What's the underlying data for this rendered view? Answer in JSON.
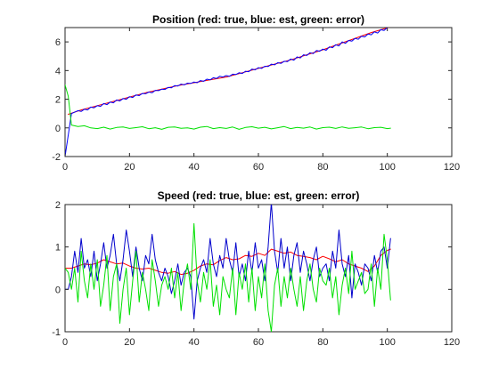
{
  "chart_data": [
    {
      "type": "line",
      "title": "Position (red: true, blue: est, green: error)",
      "xlabel": "",
      "ylabel": "",
      "xlim": [
        0,
        120
      ],
      "ylim": [
        -2,
        7
      ],
      "xticks": [
        0,
        20,
        40,
        60,
        80,
        100,
        120
      ],
      "yticks": [
        -2,
        0,
        2,
        4,
        6
      ],
      "xtick_labels": [
        "0",
        "20",
        "40",
        "60",
        "80",
        "100",
        "120"
      ],
      "ytick_labels": [
        "-2",
        "0",
        "2",
        "4",
        "6"
      ],
      "grid": false,
      "series": [
        {
          "color": "#ff0000",
          "x": [
            1,
            5,
            10,
            15,
            20,
            25,
            30,
            35,
            40,
            45,
            50,
            55,
            60,
            65,
            70,
            75,
            80,
            85,
            90,
            95,
            101
          ],
          "y": [
            0.95,
            1.25,
            1.55,
            1.85,
            2.15,
            2.45,
            2.7,
            2.95,
            3.15,
            3.35,
            3.55,
            3.85,
            4.15,
            4.45,
            4.75,
            5.1,
            5.45,
            5.85,
            6.25,
            6.65,
            7.05
          ]
        },
        {
          "color": "#0000ff",
          "x": [
            0,
            2,
            3,
            4,
            5,
            6,
            7,
            8,
            9,
            10,
            11,
            12,
            13,
            14,
            15,
            16,
            17,
            18,
            19,
            20,
            21,
            22,
            23,
            24,
            25,
            26,
            27,
            28,
            29,
            30,
            31,
            32,
            33,
            34,
            35,
            36,
            37,
            38,
            39,
            40,
            41,
            42,
            43,
            44,
            45,
            46,
            47,
            48,
            49,
            50,
            51,
            52,
            53,
            54,
            55,
            56,
            57,
            58,
            59,
            60,
            61,
            62,
            63,
            64,
            65,
            66,
            67,
            68,
            69,
            70,
            71,
            72,
            73,
            74,
            75,
            76,
            77,
            78,
            79,
            80,
            81,
            82,
            83,
            84,
            85,
            86,
            87,
            88,
            89,
            90,
            91,
            92,
            93,
            94,
            95,
            96,
            97,
            98,
            99,
            100,
            101
          ],
          "y": [
            -2.0,
            1.0,
            1.1,
            1.2,
            1.15,
            1.3,
            1.25,
            1.45,
            1.4,
            1.55,
            1.5,
            1.7,
            1.62,
            1.8,
            1.75,
            1.95,
            1.88,
            2.05,
            2.0,
            2.18,
            2.12,
            2.3,
            2.25,
            2.4,
            2.38,
            2.5,
            2.45,
            2.62,
            2.6,
            2.7,
            2.68,
            2.82,
            2.8,
            2.95,
            2.92,
            3.05,
            3.0,
            3.12,
            3.1,
            3.2,
            3.15,
            3.3,
            3.25,
            3.4,
            3.35,
            3.5,
            3.45,
            3.6,
            3.55,
            3.65,
            3.6,
            3.75,
            3.72,
            3.85,
            3.8,
            3.95,
            3.92,
            4.1,
            4.05,
            4.2,
            4.15,
            4.3,
            4.28,
            4.45,
            4.4,
            4.55,
            4.5,
            4.65,
            4.62,
            4.8,
            4.72,
            4.95,
            4.88,
            5.1,
            5.05,
            5.25,
            5.18,
            5.4,
            5.35,
            5.5,
            5.42,
            5.65,
            5.6,
            5.8,
            5.72,
            6.0,
            5.9,
            6.1,
            6.05,
            6.25,
            6.18,
            6.4,
            6.35,
            6.55,
            6.5,
            6.7,
            6.62,
            6.85,
            6.8,
            7.0,
            7.1
          ]
        },
        {
          "color": "#00e000",
          "x": [
            0,
            1,
            2,
            4,
            6,
            8,
            10,
            12,
            14,
            16,
            18,
            20,
            22,
            24,
            26,
            28,
            30,
            32,
            34,
            36,
            38,
            40,
            42,
            44,
            46,
            48,
            50,
            52,
            54,
            56,
            58,
            60,
            62,
            64,
            66,
            68,
            70,
            72,
            74,
            76,
            78,
            80,
            82,
            84,
            86,
            88,
            90,
            92,
            94,
            96,
            98,
            100,
            101
          ],
          "y": [
            3.0,
            2.2,
            0.2,
            0.1,
            0.15,
            0.0,
            -0.05,
            0.05,
            -0.08,
            0.03,
            0.06,
            -0.04,
            0.02,
            0.08,
            -0.06,
            0.01,
            -0.1,
            0.04,
            0.07,
            -0.03,
            0.0,
            -0.08,
            0.05,
            0.1,
            -0.05,
            0.02,
            -0.04,
            0.06,
            -0.1,
            0.03,
            0.08,
            -0.02,
            0.04,
            -0.07,
            0.01,
            0.09,
            -0.05,
            0.03,
            -0.02,
            0.06,
            -0.08,
            0.02,
            0.05,
            -0.04,
            0.07,
            -0.03,
            0.01,
            0.06,
            -0.06,
            0.02,
            0.04,
            -0.05,
            -0.02
          ]
        }
      ]
    },
    {
      "type": "line",
      "title": "Speed (red: true, blue: est, green: error)",
      "xlabel": "",
      "ylabel": "",
      "xlim": [
        0,
        120
      ],
      "ylim": [
        -1,
        2
      ],
      "xticks": [
        0,
        20,
        40,
        60,
        80,
        100,
        120
      ],
      "yticks": [
        -1,
        0,
        1,
        2
      ],
      "xtick_labels": [
        "0",
        "20",
        "40",
        "60",
        "80",
        "100",
        "120"
      ],
      "ytick_labels": [
        "-1",
        "0",
        "1",
        "2"
      ],
      "grid": false,
      "series": [
        {
          "color": "#ff0000",
          "x": [
            0,
            2,
            4,
            6,
            8,
            10,
            12,
            14,
            16,
            18,
            20,
            22,
            24,
            26,
            28,
            30,
            32,
            34,
            36,
            38,
            40,
            42,
            44,
            46,
            48,
            50,
            52,
            54,
            56,
            58,
            60,
            62,
            64,
            66,
            68,
            70,
            72,
            74,
            76,
            78,
            80,
            82,
            84,
            86,
            88,
            90,
            92,
            94,
            96,
            98,
            100,
            101
          ],
          "y": [
            0.5,
            0.5,
            0.55,
            0.6,
            0.58,
            0.62,
            0.7,
            0.65,
            0.6,
            0.62,
            0.55,
            0.5,
            0.48,
            0.5,
            0.45,
            0.4,
            0.38,
            0.42,
            0.35,
            0.38,
            0.45,
            0.55,
            0.6,
            0.58,
            0.68,
            0.75,
            0.7,
            0.72,
            0.8,
            0.78,
            0.85,
            0.8,
            0.95,
            0.9,
            0.85,
            0.88,
            0.8,
            0.78,
            0.75,
            0.7,
            0.78,
            0.72,
            0.65,
            0.7,
            0.6,
            0.55,
            0.5,
            0.42,
            0.55,
            0.8,
            0.92,
            0.95
          ]
        },
        {
          "color": "#0000cc",
          "x": [
            0,
            1,
            2,
            3,
            4,
            5,
            6,
            7,
            8,
            9,
            10,
            11,
            12,
            13,
            14,
            15,
            16,
            17,
            18,
            19,
            20,
            21,
            22,
            23,
            24,
            25,
            26,
            27,
            28,
            29,
            30,
            31,
            32,
            33,
            34,
            35,
            36,
            37,
            38,
            39,
            40,
            41,
            42,
            43,
            44,
            45,
            46,
            47,
            48,
            49,
            50,
            51,
            52,
            53,
            54,
            55,
            56,
            57,
            58,
            59,
            60,
            61,
            62,
            63,
            64,
            65,
            66,
            67,
            68,
            69,
            70,
            71,
            72,
            73,
            74,
            75,
            76,
            77,
            78,
            79,
            80,
            81,
            82,
            83,
            84,
            85,
            86,
            87,
            88,
            89,
            90,
            91,
            92,
            93,
            94,
            95,
            96,
            97,
            98,
            99,
            100,
            101
          ],
          "y": [
            0.0,
            0.0,
            0.3,
            0.9,
            0.4,
            1.2,
            0.5,
            0.7,
            0.3,
            0.9,
            0.2,
            0.6,
            1.1,
            0.5,
            0.8,
            1.3,
            0.6,
            0.2,
            0.7,
            1.4,
            0.9,
            0.3,
            1.0,
            0.5,
            0.2,
            0.8,
            0.6,
            1.3,
            0.7,
            0.4,
            0.2,
            0.5,
            0.3,
            -0.1,
            0.2,
            0.6,
            0.1,
            0.4,
            0.5,
            0.3,
            -0.7,
            0.2,
            0.5,
            0.7,
            0.4,
            1.2,
            0.6,
            0.3,
            0.8,
            0.5,
            1.2,
            0.7,
            0.4,
            1.1,
            0.3,
            0.6,
            0.2,
            0.9,
            0.4,
            1.1,
            0.5,
            0.7,
            0.2,
            1.0,
            2.05,
            0.9,
            0.4,
            1.2,
            0.5,
            1.0,
            0.2,
            0.8,
            1.1,
            0.4,
            0.9,
            0.6,
            0.2,
            0.7,
            1.0,
            0.3,
            0.5,
            0.6,
            0.2,
            0.9,
            0.5,
            1.4,
            0.6,
            0.3,
            0.8,
            -0.2,
            0.6,
            0.4,
            0.1,
            0.6,
            0.5,
            0.2,
            0.8,
            0.4,
            0.9,
            1.0,
            0.5,
            1.2
          ]
        },
        {
          "color": "#00e000",
          "x": [
            0,
            1,
            2,
            3,
            4,
            5,
            6,
            7,
            8,
            9,
            10,
            11,
            12,
            13,
            14,
            15,
            16,
            17,
            18,
            19,
            20,
            21,
            22,
            23,
            24,
            25,
            26,
            27,
            28,
            29,
            30,
            31,
            32,
            33,
            34,
            35,
            36,
            37,
            38,
            39,
            40,
            41,
            42,
            43,
            44,
            45,
            46,
            47,
            48,
            49,
            50,
            51,
            52,
            53,
            54,
            55,
            56,
            57,
            58,
            59,
            60,
            61,
            62,
            63,
            64,
            65,
            66,
            67,
            68,
            69,
            70,
            71,
            72,
            73,
            74,
            75,
            76,
            77,
            78,
            79,
            80,
            81,
            82,
            83,
            84,
            85,
            86,
            87,
            88,
            89,
            90,
            91,
            92,
            93,
            94,
            95,
            96,
            97,
            98,
            99,
            100,
            101
          ],
          "y": [
            0.5,
            0.4,
            0.0,
            0.5,
            -0.3,
            0.9,
            0.2,
            -0.2,
            0.6,
            0.0,
            0.7,
            -0.4,
            0.1,
            0.8,
            -0.5,
            0.3,
            0.6,
            -0.8,
            0.0,
            0.5,
            -0.6,
            0.2,
            0.9,
            -0.3,
            0.4,
            0.0,
            -0.5,
            0.7,
            0.2,
            -0.4,
            0.1,
            0.3,
            0.0,
            0.5,
            -0.2,
            0.4,
            -0.5,
            0.2,
            0.6,
            0.0,
            1.55,
            0.2,
            -0.3,
            0.4,
            0.0,
            0.7,
            -0.4,
            0.1,
            -0.6,
            0.3,
            0.0,
            -0.2,
            0.5,
            -0.6,
            0.4,
            0.0,
            0.6,
            -0.3,
            0.5,
            -0.5,
            0.3,
            -0.2,
            0.6,
            -0.5,
            -1.0,
            0.1,
            0.5,
            -0.4,
            0.3,
            -0.2,
            0.5,
            0.0,
            -0.4,
            0.3,
            -0.5,
            0.2,
            0.6,
            0.0,
            -0.3,
            0.5,
            0.2,
            0.1,
            0.5,
            -0.2,
            0.3,
            -0.6,
            0.1,
            0.5,
            -0.1,
            0.9,
            0.0,
            0.2,
            0.4,
            -0.1,
            0.0,
            0.6,
            -0.4,
            0.5,
            0.0,
            1.3,
            0.7,
            -0.25
          ]
        }
      ]
    }
  ]
}
